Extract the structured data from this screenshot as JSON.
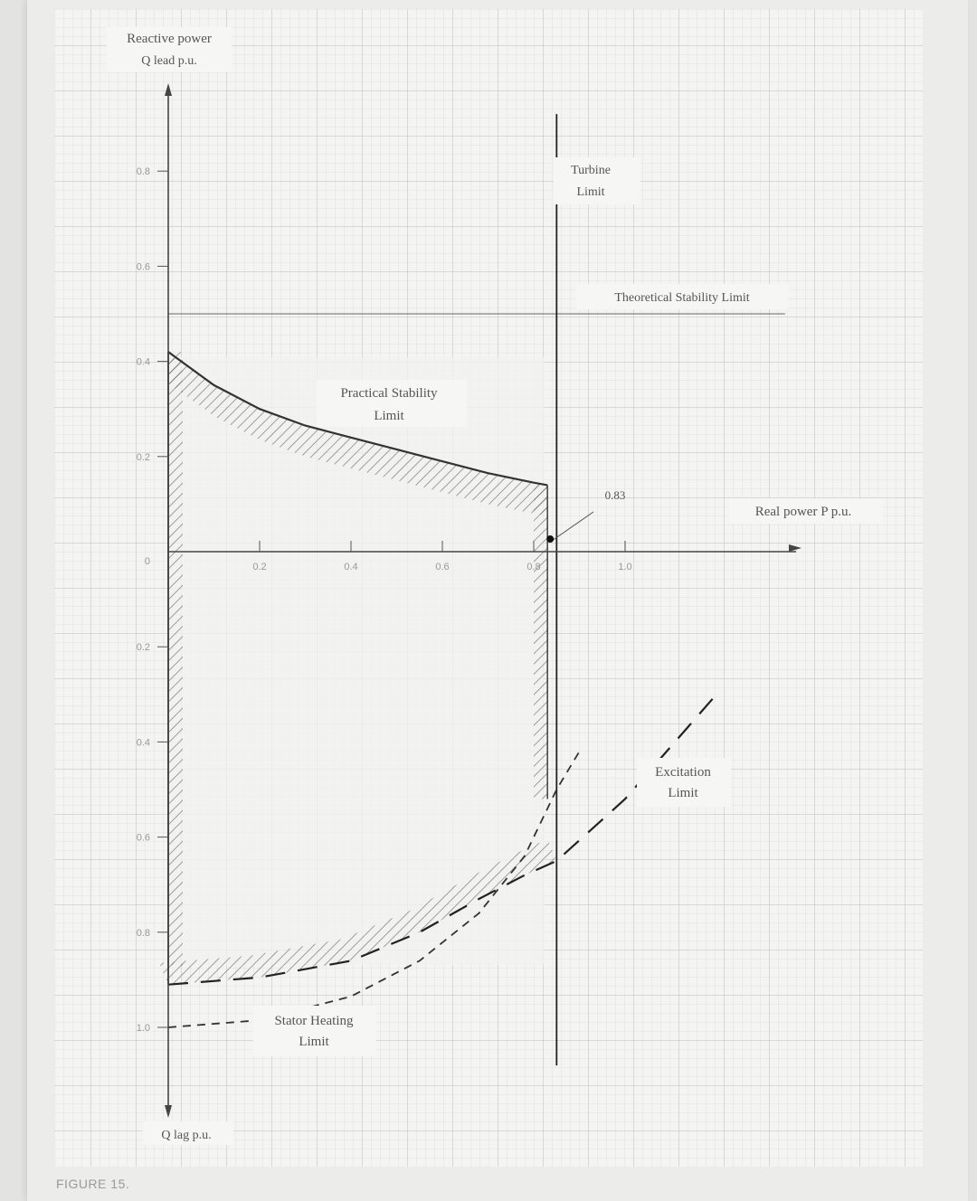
{
  "figure_caption": "FIGURE 15.",
  "chart_data": {
    "type": "line",
    "title": "",
    "y_axis_top_label_line1": "Reactive power",
    "y_axis_top_label_line2": "Q lead p.u.",
    "y_axis_bottom_label": "Q lag p.u.",
    "x_axis_label": "Real power P p.u.",
    "x_ticks": [
      "0.2",
      "0.4",
      "0.6",
      "0.8",
      "1.0"
    ],
    "y_ticks_lead": [
      "0.8",
      "0.6",
      "0.4",
      "0.2"
    ],
    "y_origin_label": "0",
    "y_ticks_lag": [
      "0.2",
      "0.4",
      "0.6",
      "0.8",
      "1.0"
    ],
    "xlim": [
      0,
      1.4
    ],
    "ylim": [
      -1.2,
      1.0
    ],
    "annotations": {
      "turbine_limit": [
        "Turbine",
        "Limit"
      ],
      "theoretical_stability": "Theoretical Stability Limit",
      "practical_stability": [
        "Practical Stability",
        "Limit"
      ],
      "excitation_limit": [
        "Excitation",
        "Limit"
      ],
      "stator_heating": [
        "Stator Heating",
        "Limit"
      ],
      "marker_label": "0.83"
    },
    "series": [
      {
        "name": "Practical Stability Limit",
        "x": [
          0,
          0.1,
          0.2,
          0.3,
          0.4,
          0.5,
          0.6,
          0.7,
          0.8,
          0.83
        ],
        "y": [
          0.42,
          0.35,
          0.3,
          0.265,
          0.24,
          0.215,
          0.19,
          0.165,
          0.145,
          0.14
        ]
      },
      {
        "name": "Theoretical Stability Limit",
        "x": [
          0,
          1.35
        ],
        "y": [
          0.5,
          0.5
        ]
      },
      {
        "name": "Turbine Limit",
        "x": [
          0.85,
          0.85
        ],
        "y": [
          0.92,
          -1.08
        ]
      },
      {
        "name": "Stator Heating Limit",
        "x": [
          0,
          0.2,
          0.4,
          0.55,
          0.68,
          0.78,
          0.85,
          0.9
        ],
        "y": [
          -1.0,
          -0.985,
          -0.935,
          -0.86,
          -0.76,
          -0.64,
          -0.5,
          -0.42
        ]
      },
      {
        "name": "Excitation Limit",
        "x": [
          0,
          0.2,
          0.4,
          0.55,
          0.68,
          0.78,
          0.85,
          1.0,
          1.2
        ],
        "y": [
          -0.91,
          -0.895,
          -0.86,
          -0.8,
          -0.73,
          -0.68,
          -0.65,
          -0.52,
          -0.3
        ]
      }
    ],
    "operating_point": {
      "x": 0.83,
      "y": 0.0
    },
    "grid": true
  }
}
